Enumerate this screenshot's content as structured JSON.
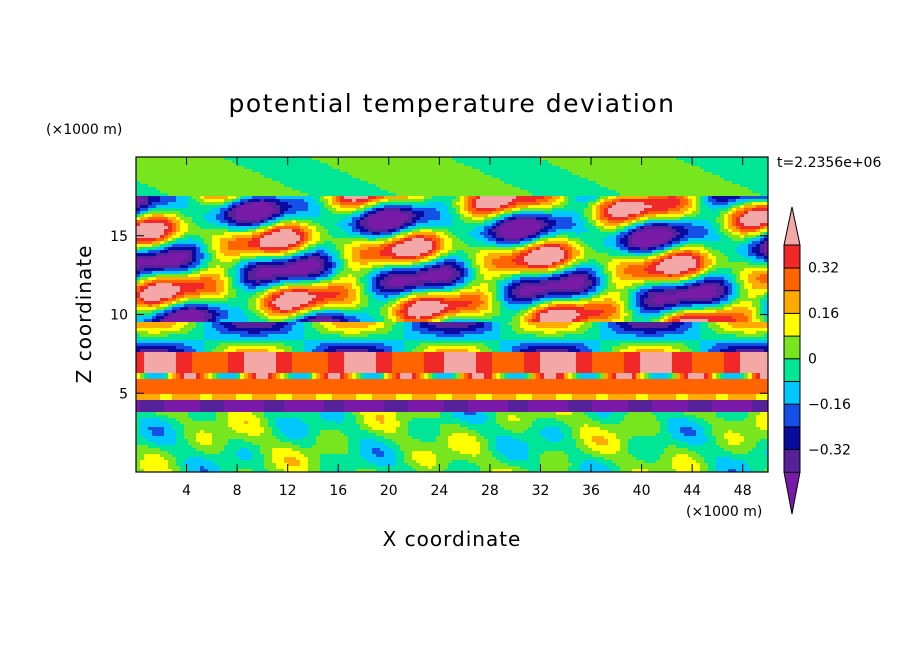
{
  "chart_data": {
    "type": "heatmap",
    "title": "potential temperature deviation",
    "xlabel": "X coordinate",
    "ylabel": "Z coordinate",
    "x_unit": "(×1000 m)",
    "y_unit": "(×1000 m)",
    "time_label": "t=2.2356e+06",
    "xlim": [
      0,
      50
    ],
    "ylim": [
      0,
      20
    ],
    "x_ticks": [
      4,
      8,
      12,
      16,
      20,
      24,
      28,
      32,
      36,
      40,
      44,
      48
    ],
    "x_tick_labels": [
      "4",
      "8",
      "12",
      "16",
      "20",
      "24",
      "28",
      "32",
      "36",
      "40",
      "44",
      "48"
    ],
    "y_ticks": [
      5,
      10,
      15
    ],
    "y_tick_labels": [
      "5",
      "10",
      "15"
    ],
    "colorbar": {
      "levels": [
        -0.4,
        -0.32,
        -0.24,
        -0.16,
        -0.08,
        0,
        0.08,
        0.16,
        0.24,
        0.32,
        0.4
      ],
      "labels": [
        "0.32",
        "0.16",
        "0",
        "−0.16",
        "−0.32"
      ],
      "label_values": [
        0.32,
        0.16,
        0,
        -0.16,
        -0.32
      ],
      "colors": [
        "#7a1aa8",
        "#552299",
        "#0a0aa0",
        "#1450e6",
        "#00c8ff",
        "#00e696",
        "#78e61e",
        "#ffff00",
        "#ffaa00",
        "#ff6400",
        "#f02828",
        "#f4a7a7"
      ],
      "extend": "both"
    }
  }
}
